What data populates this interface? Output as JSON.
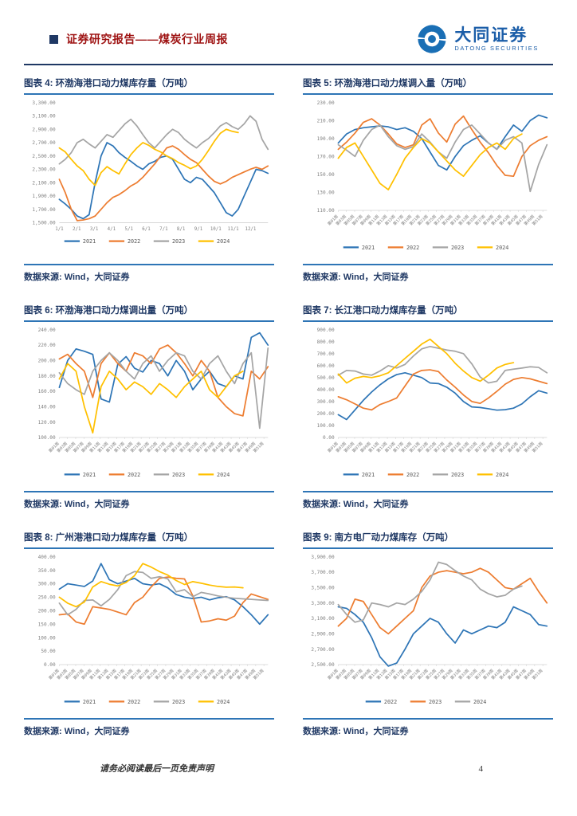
{
  "header": {
    "title": "证券研究报告——煤炭行业周报",
    "logo_cn": "大同证券",
    "logo_en": "DATONG SECURITIES"
  },
  "source_label": "数据来源: Wind，大同证券",
  "footer": {
    "disclaimer": "请务必阅读最后一页免责声明",
    "page_number": "4"
  },
  "colors": {
    "accent_red": "#9E1212",
    "navy": "#1F3864",
    "rule_blue": "#2E75B6",
    "logo_blue": "#1A6FB5",
    "axis_gray": "#808080",
    "series_palette": [
      "#2E75B6",
      "#ED7D31",
      "#A5A5A5",
      "#FFC000"
    ]
  },
  "week_x_labels": [
    "第01周",
    "第03周",
    "第05周",
    "第07周",
    "第09周",
    "第11周",
    "第13周",
    "第15周",
    "第17周",
    "第19周",
    "第21周",
    "第23周",
    "第25周",
    "第27周",
    "第29周",
    "第31周",
    "第33周",
    "第35周",
    "第37周",
    "第39周",
    "第41周",
    "第43周",
    "第45周",
    "第47周",
    "第49周",
    "第51周"
  ],
  "chart_data": [
    {
      "type": "line",
      "title": "图表 4: 环渤海港口动力煤库存量（万吨）",
      "xlabel": "",
      "ylabel": "",
      "ylim": [
        1500,
        3300
      ],
      "y_tick_labels": [
        "3,300.00",
        "3,100.00",
        "2,900.00",
        "2,700.00",
        "2,500.00",
        "2,300.00",
        "2,100.00",
        "1,900.00",
        "1,700.00",
        "1,500.00"
      ],
      "x_tick_labels": [
        "1/1",
        "2/1",
        "3/1",
        "4/1",
        "5/1",
        "6/1",
        "7/1",
        "8/1",
        "9/1",
        "10/1",
        "11/1",
        "12/1"
      ],
      "x_rotate": false,
      "n_points": 36,
      "legend": [
        "2021",
        "2022",
        "2023",
        "2024"
      ],
      "legend_position": "bottom",
      "grid": false,
      "series": [
        {
          "name": "2021",
          "values": [
            1850,
            1780,
            1700,
            1600,
            1560,
            1620,
            2100,
            2500,
            2700,
            2650,
            2550,
            2480,
            2420,
            2350,
            2300,
            2380,
            2420,
            2480,
            2500,
            2450,
            2300,
            2150,
            2100,
            2180,
            2150,
            2050,
            1950,
            1800,
            1650,
            1600,
            1700,
            1900,
            2100,
            2300,
            2280,
            2240
          ]
        },
        {
          "name": "2022",
          "values": [
            2150,
            1950,
            1700,
            1530,
            1540,
            1560,
            1600,
            1700,
            1800,
            1880,
            1920,
            1980,
            2050,
            2100,
            2180,
            2280,
            2380,
            2500,
            2620,
            2650,
            2600,
            2520,
            2450,
            2400,
            2300,
            2200,
            2120,
            2080,
            2120,
            2180,
            2220,
            2260,
            2300,
            2330,
            2300,
            2350
          ]
        },
        {
          "name": "2023",
          "values": [
            2380,
            2450,
            2550,
            2700,
            2750,
            2680,
            2620,
            2720,
            2820,
            2780,
            2880,
            2980,
            3050,
            2950,
            2820,
            2700,
            2620,
            2720,
            2820,
            2900,
            2850,
            2750,
            2680,
            2620,
            2700,
            2760,
            2850,
            2950,
            3000,
            2940,
            2900,
            2980,
            3100,
            3020,
            2750,
            2600
          ]
        },
        {
          "name": "2024",
          "values": [
            2620,
            2560,
            2450,
            2350,
            2280,
            2150,
            2060,
            2250,
            2340,
            2280,
            2230,
            2380,
            2520,
            2620,
            2700,
            2660,
            2600,
            2560,
            2500,
            2460,
            2400,
            2360,
            2310,
            2350,
            2450,
            2580,
            2720,
            2840,
            2900,
            2870,
            2850
          ]
        }
      ]
    },
    {
      "type": "line",
      "title": "图表 5: 环渤海港口动力煤调入量（万吨）",
      "xlabel": "",
      "ylabel": "",
      "ylim": [
        110,
        230
      ],
      "y_tick_labels": [
        "230.00",
        "210.00",
        "190.00",
        "170.00",
        "150.00",
        "130.00",
        "110.00"
      ],
      "x_tick_labels": "week_x_labels",
      "x_rotate": true,
      "n_points": 26,
      "legend": [
        "2021",
        "2022",
        "2023",
        "2024"
      ],
      "legend_position": "bottom",
      "grid": false,
      "series": [
        {
          "name": "2021",
          "values": [
            185,
            195,
            200,
            202,
            203,
            204,
            203,
            200,
            202,
            198,
            190,
            175,
            160,
            155,
            170,
            182,
            188,
            193,
            185,
            178,
            192,
            205,
            198,
            210,
            216,
            213
          ]
        },
        {
          "name": "2022",
          "values": [
            178,
            186,
            196,
            208,
            212,
            205,
            195,
            184,
            180,
            183,
            205,
            212,
            196,
            186,
            206,
            215,
            200,
            186,
            174,
            160,
            149,
            148,
            170,
            182,
            188,
            192
          ]
        },
        {
          "name": "2023",
          "values": [
            183,
            177,
            170,
            188,
            200,
            205,
            192,
            182,
            178,
            181,
            195,
            186,
            175,
            168,
            186,
            200,
            205,
            195,
            185,
            178,
            188,
            192,
            185,
            131,
            161,
            183
          ]
        },
        {
          "name": "2024",
          "values": [
            168,
            180,
            185,
            170,
            155,
            140,
            133,
            150,
            168,
            180,
            190,
            185,
            175,
            165,
            155,
            148,
            160,
            172,
            180,
            185,
            178,
            190,
            195
          ]
        }
      ]
    },
    {
      "type": "line",
      "title": "图表 6: 环渤海港口动力煤调出量（万吨）",
      "xlabel": "",
      "ylabel": "",
      "ylim": [
        100,
        240
      ],
      "y_tick_labels": [
        "240.00",
        "220.00",
        "200.00",
        "180.00",
        "160.00",
        "140.00",
        "120.00",
        "100.00"
      ],
      "x_tick_labels": "week_x_labels",
      "x_rotate": true,
      "n_points": 26,
      "legend": [
        "2021",
        "2022",
        "2023",
        "2024"
      ],
      "legend_position": "bottom",
      "grid": false,
      "series": [
        {
          "name": "2021",
          "values": [
            165,
            200,
            215,
            212,
            208,
            150,
            146,
            195,
            205,
            190,
            185,
            200,
            196,
            180,
            200,
            186,
            162,
            176,
            186,
            170,
            166,
            180,
            176,
            230,
            236,
            220
          ]
        },
        {
          "name": "2022",
          "values": [
            202,
            208,
            196,
            186,
            152,
            196,
            210,
            196,
            186,
            210,
            206,
            196,
            215,
            220,
            210,
            196,
            180,
            200,
            186,
            152,
            140,
            131,
            128,
            186,
            176,
            192
          ]
        },
        {
          "name": "2023",
          "values": [
            184,
            170,
            162,
            156,
            186,
            200,
            210,
            200,
            186,
            176,
            196,
            206,
            186,
            200,
            210,
            206,
            186,
            176,
            196,
            206,
            186,
            170,
            196,
            210,
            112,
            216
          ]
        },
        {
          "name": "2024",
          "values": [
            176,
            196,
            186,
            140,
            106,
            166,
            186,
            176,
            162,
            172,
            166,
            156,
            170,
            162,
            152,
            166,
            176,
            186,
            162,
            152,
            166,
            180,
            186
          ]
        }
      ]
    },
    {
      "type": "line",
      "title": "图表 7: 长江港口动力煤库存量（万吨）",
      "xlabel": "",
      "ylabel": "",
      "ylim": [
        0,
        900
      ],
      "y_tick_labels": [
        "900.00",
        "800.00",
        "700.00",
        "600.00",
        "500.00",
        "400.00",
        "300.00",
        "200.00",
        "100.00",
        "0.00"
      ],
      "x_tick_labels": "week_x_labels",
      "x_rotate": true,
      "n_points": 26,
      "legend": [
        "2021",
        "2022",
        "2023",
        "2024"
      ],
      "legend_position": "bottom",
      "grid": false,
      "series": [
        {
          "name": "2021",
          "values": [
            190,
            150,
            230,
            310,
            380,
            440,
            490,
            525,
            540,
            520,
            500,
            455,
            450,
            420,
            370,
            300,
            255,
            250,
            240,
            228,
            232,
            245,
            280,
            340,
            390,
            370
          ]
        },
        {
          "name": "2022",
          "values": [
            340,
            315,
            280,
            245,
            230,
            275,
            300,
            330,
            430,
            530,
            560,
            565,
            550,
            480,
            420,
            355,
            300,
            285,
            330,
            385,
            445,
            485,
            500,
            490,
            470,
            450
          ]
        },
        {
          "name": "2023",
          "values": [
            520,
            560,
            555,
            530,
            520,
            555,
            600,
            580,
            610,
            680,
            740,
            760,
            745,
            730,
            720,
            700,
            615,
            505,
            455,
            470,
            560,
            570,
            580,
            590,
            585,
            540
          ]
        },
        {
          "name": "2024",
          "values": [
            530,
            455,
            495,
            510,
            500,
            515,
            540,
            600,
            660,
            720,
            780,
            820,
            760,
            700,
            620,
            555,
            500,
            470,
            520,
            580,
            610,
            625
          ]
        }
      ]
    },
    {
      "type": "line",
      "title": "图表 8: 广州港港口动力煤库存量（万吨）",
      "xlabel": "",
      "ylabel": "",
      "ylim": [
        0,
        400
      ],
      "y_tick_labels": [
        "400.00",
        "350.00",
        "300.00",
        "250.00",
        "200.00",
        "150.00",
        "100.00",
        "50.00",
        "0.00"
      ],
      "x_tick_labels": "week_x_labels",
      "x_rotate": true,
      "n_points": 26,
      "legend": [
        "2021",
        "2022",
        "2023",
        "2024"
      ],
      "legend_position": "bottom",
      "grid": false,
      "series": [
        {
          "name": "2021",
          "values": [
            280,
            300,
            295,
            290,
            310,
            375,
            315,
            300,
            310,
            320,
            300,
            295,
            300,
            285,
            260,
            250,
            245,
            250,
            240,
            248,
            252,
            240,
            215,
            185,
            150,
            185
          ]
        },
        {
          "name": "2022",
          "values": [
            185,
            188,
            158,
            150,
            215,
            210,
            205,
            195,
            185,
            230,
            250,
            288,
            320,
            325,
            320,
            318,
            255,
            158,
            162,
            170,
            165,
            180,
            230,
            262,
            252,
            242
          ]
        },
        {
          "name": "2023",
          "values": [
            228,
            185,
            205,
            238,
            240,
            218,
            242,
            278,
            330,
            345,
            342,
            320,
            326,
            318,
            270,
            278,
            252,
            268,
            262,
            255,
            250,
            246,
            244,
            242,
            240,
            238
          ]
        },
        {
          "name": "2024",
          "values": [
            250,
            228,
            215,
            232,
            288,
            308,
            298,
            292,
            305,
            330,
            375,
            362,
            345,
            332,
            312,
            297,
            308,
            302,
            295,
            290,
            287,
            288,
            285
          ]
        }
      ]
    },
    {
      "type": "line",
      "title": "图表 9: 南方电厂动力煤库存（万吨）",
      "xlabel": "",
      "ylabel": "",
      "ylim": [
        2500,
        3900
      ],
      "y_tick_labels": [
        "3,900.00",
        "3,700.00",
        "3,500.00",
        "3,300.00",
        "3,100.00",
        "2,900.00",
        "2,700.00",
        "2,500.00"
      ],
      "x_tick_labels": "week_x_labels",
      "x_rotate": true,
      "n_points": 26,
      "legend": [
        "2022",
        "2023",
        "2024"
      ],
      "legend_position": "bottom",
      "grid": false,
      "series": [
        {
          "name": "2022",
          "values": [
            3250,
            3230,
            3150,
            3050,
            2850,
            2600,
            2480,
            2520,
            2700,
            2900,
            3000,
            3100,
            3050,
            2900,
            2780,
            2950,
            2900,
            2950,
            3000,
            2980,
            3050,
            3250,
            3200,
            3150,
            3020,
            3000
          ]
        },
        {
          "name": "2023",
          "values": [
            3000,
            3100,
            3350,
            3320,
            3150,
            2980,
            2900,
            3000,
            3100,
            3200,
            3500,
            3650,
            3700,
            3720,
            3700,
            3680,
            3700,
            3750,
            3700,
            3600,
            3500,
            3480,
            3550,
            3620,
            3450,
            3300
          ]
        },
        {
          "name": "2024",
          "values": [
            3280,
            3150,
            3050,
            3080,
            3300,
            3280,
            3250,
            3300,
            3280,
            3350,
            3450,
            3600,
            3830,
            3800,
            3720,
            3650,
            3600,
            3480,
            3420,
            3380,
            3400,
            3480,
            3520
          ]
        }
      ]
    }
  ]
}
